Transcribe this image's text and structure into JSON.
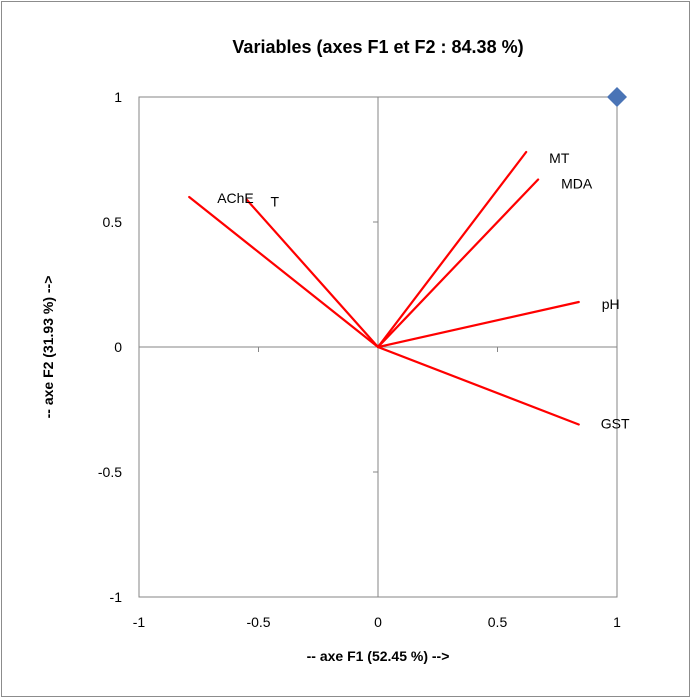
{
  "chart_data": {
    "type": "scatter",
    "title": "Variables (axes F1 et F2 : 84.38 %)",
    "xlabel": "-- axe F1 (52.45 %) -->",
    "ylabel": "-- axe F2 (31.93 %) -->",
    "xlim": [
      -1,
      1
    ],
    "ylim": [
      -1,
      1
    ],
    "x_ticks": [
      -1,
      -0.5,
      0,
      0.5,
      1
    ],
    "y_ticks": [
      -1,
      -0.5,
      0,
      0.5,
      1
    ],
    "x_tick_labels": [
      "-1",
      "-0.5",
      "0",
      "0.5",
      "1"
    ],
    "y_tick_labels": [
      "-1",
      "-0.5",
      "0",
      "0.5",
      "1"
    ],
    "grid": false,
    "vectors": [
      {
        "name": "AChE",
        "x": -0.79,
        "y": 0.6
      },
      {
        "name": "T",
        "x": -0.55,
        "y": 0.59
      },
      {
        "name": "MT",
        "x": 0.62,
        "y": 0.78
      },
      {
        "name": "MDA",
        "x": 0.67,
        "y": 0.67
      },
      {
        "name": "pH",
        "x": 0.84,
        "y": 0.18
      },
      {
        "name": "GST",
        "x": 0.84,
        "y": -0.31
      }
    ],
    "points": [
      {
        "x": 1,
        "y": 1
      }
    ],
    "colors": {
      "vector": "#ff0000",
      "point": "#4a74b6",
      "axis": "#868686"
    }
  }
}
